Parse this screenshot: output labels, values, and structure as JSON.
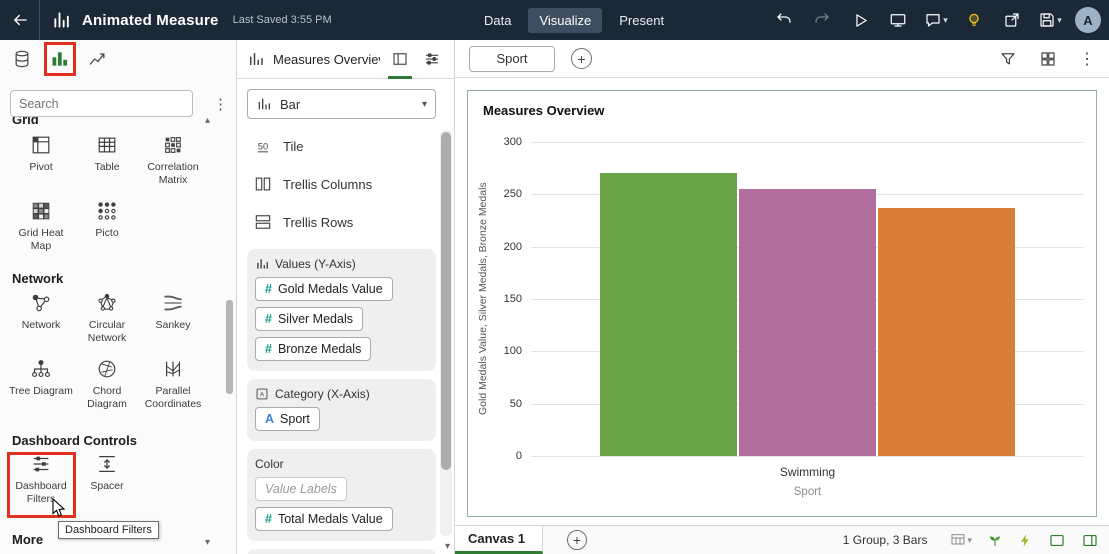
{
  "icons": {
    "caret_down": "▾",
    "caret_up": "▴",
    "kebab": "⋮",
    "plus": "+"
  },
  "topbar": {
    "title": "Animated Measure",
    "last_saved": "Last Saved 3:55 PM",
    "nav": [
      {
        "label": "Data",
        "active": false
      },
      {
        "label": "Visualize",
        "active": true
      },
      {
        "label": "Present",
        "active": false
      }
    ],
    "avatar_letter": "A"
  },
  "left_panel": {
    "search_placeholder": "Search",
    "sections": {
      "grid": {
        "label": "Grid",
        "items": [
          "Pivot",
          "Table",
          "Correlation Matrix",
          "Grid Heat Map",
          "Picto"
        ]
      },
      "network": {
        "label": "Network",
        "items": [
          "Network",
          "Circular Network",
          "Sankey",
          "Tree Diagram",
          "Chord Diagram",
          "Parallel Coordinates"
        ]
      },
      "dashboard": {
        "label": "Dashboard Controls",
        "items": [
          "Dashboard Filters",
          "Spacer"
        ]
      },
      "more": {
        "label": "More"
      }
    },
    "tooltip": "Dashboard Filters"
  },
  "grammar_panel": {
    "title": "Measures Overview",
    "chart_type": "Bar",
    "layout_rows": [
      "Tile",
      "Trellis Columns",
      "Trellis Rows"
    ],
    "tile_glyph": "50",
    "values": {
      "label": "Values (Y-Axis)",
      "pills": [
        "Gold Medals Value",
        "Silver Medals",
        "Bronze Medals"
      ]
    },
    "category": {
      "label": "Category (X-Axis)",
      "prefix": "A",
      "pills": [
        "Sport"
      ]
    },
    "color": {
      "label": "Color",
      "placeholder": "Value Labels",
      "pills": [
        "Total Medals Value"
      ]
    }
  },
  "main": {
    "filter_tab": "Sport",
    "canvas_tab": "Canvas 1",
    "status": "1 Group, 3 Bars"
  },
  "chart_data": {
    "type": "bar",
    "title": "Measures Overview",
    "categories": [
      "Swimming"
    ],
    "series": [
      {
        "name": "Gold Medals Value",
        "color": "#6aa347",
        "values": [
          270
        ]
      },
      {
        "name": "Silver Medals",
        "color": "#b16e9d",
        "values": [
          255
        ]
      },
      {
        "name": "Bronze Medals",
        "color": "#d97e3a",
        "values": [
          237
        ]
      }
    ],
    "xlabel": "Sport",
    "ylabel": "Gold Medals Value, Silver Medals, Bronze Medals",
    "yticks": [
      0,
      50,
      100,
      150,
      200,
      250,
      300
    ],
    "ylim": [
      0,
      300
    ],
    "grid": "horizontal",
    "legend": "none"
  },
  "colors": {
    "topbar_bg": "#1b2937",
    "annotation_red": "#e0301e",
    "active_green": "#2f7d33",
    "measure_teal": "#0e9888",
    "dimension_blue": "#3f7fd4",
    "bulb_yellow": "#f5c518"
  }
}
